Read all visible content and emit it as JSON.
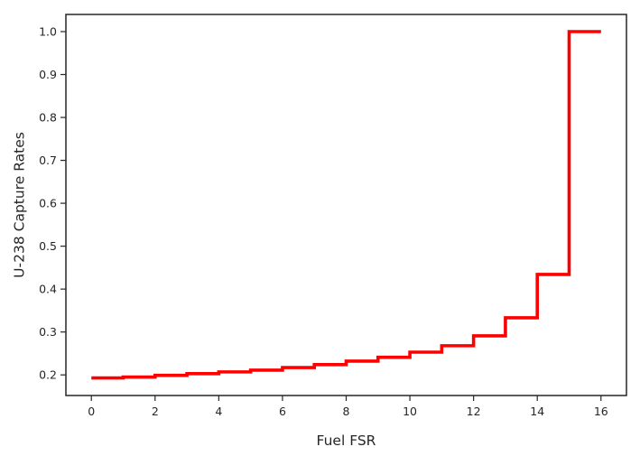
{
  "chart_data": {
    "type": "line",
    "drawstyle": "steps-post",
    "xlabel": "Fuel FSR",
    "ylabel": "U-238 Capture Rates",
    "xlim": [
      -0.8,
      16.8
    ],
    "ylim": [
      0.152,
      1.04
    ],
    "x_ticks": [
      0,
      2,
      4,
      6,
      8,
      10,
      12,
      14,
      16
    ],
    "x_tick_labels": [
      "0",
      "2",
      "4",
      "6",
      "8",
      "10",
      "12",
      "14",
      "16"
    ],
    "y_ticks": [
      0.2,
      0.3,
      0.4,
      0.5,
      0.6,
      0.7,
      0.8,
      0.9,
      1.0
    ],
    "y_tick_labels": [
      "0.2",
      "0.3",
      "0.4",
      "0.5",
      "0.6",
      "0.7",
      "0.8",
      "0.9",
      "1.0"
    ],
    "grid": false,
    "series": [
      {
        "color": "#ff0000",
        "x": [
          0,
          1,
          2,
          3,
          4,
          5,
          6,
          7,
          8,
          9,
          10,
          11,
          12,
          13,
          14,
          15,
          16
        ],
        "y": [
          0.193,
          0.195,
          0.199,
          0.203,
          0.207,
          0.211,
          0.217,
          0.224,
          0.232,
          0.241,
          0.253,
          0.268,
          0.291,
          0.333,
          0.434,
          1.0,
          1.0
        ]
      }
    ]
  }
}
